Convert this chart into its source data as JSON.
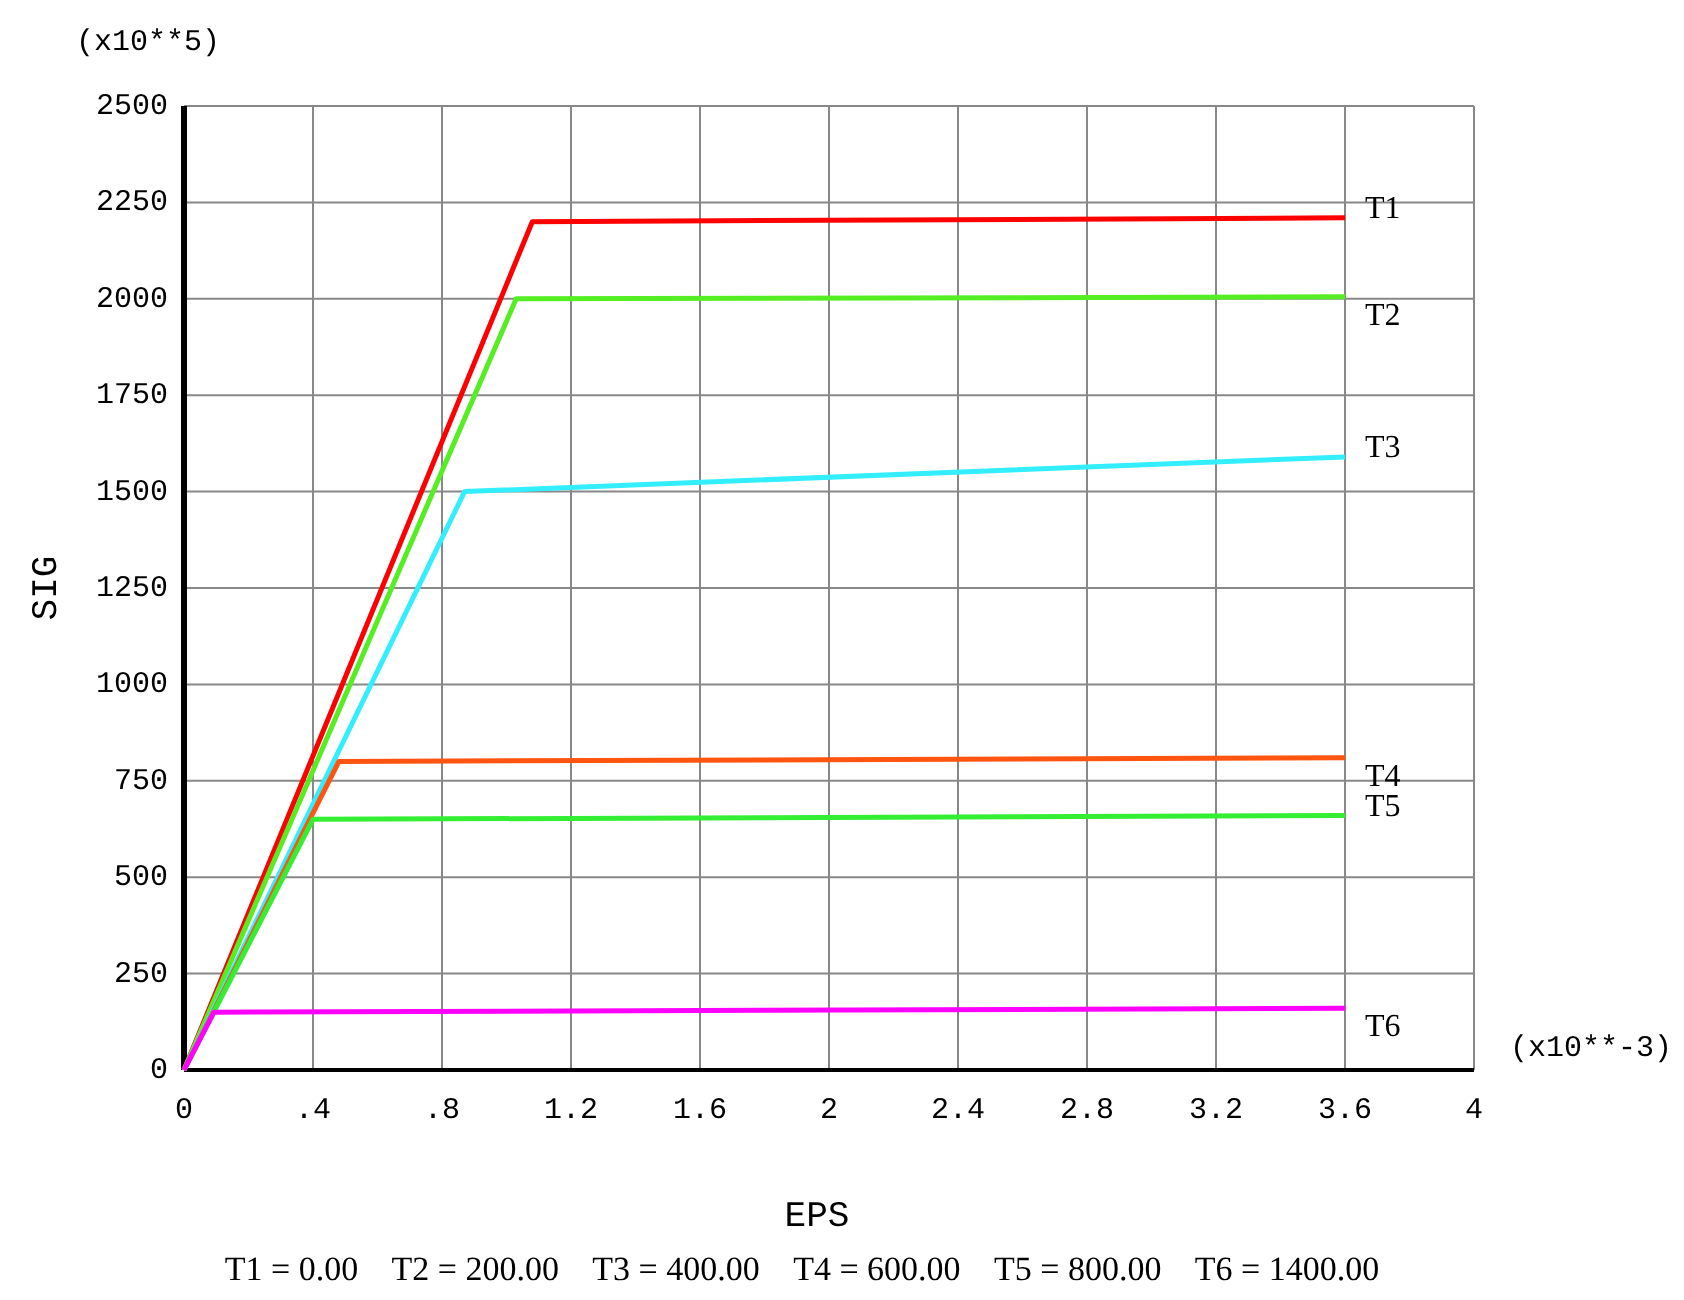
{
  "chart_data": {
    "type": "line",
    "xlabel": "EPS",
    "ylabel": "SIG",
    "xlim": [
      0,
      4
    ],
    "ylim": [
      0,
      2500
    ],
    "xticks": [
      0,
      {
        "value": 0.4,
        "label": ".4"
      },
      {
        "value": 0.8,
        "label": ".8"
      },
      1.2,
      1.6,
      2,
      2.4,
      2.8,
      3.2,
      3.6,
      4
    ],
    "yticks": [
      0,
      250,
      500,
      750,
      1000,
      1250,
      1500,
      1750,
      2000,
      2250,
      2500
    ],
    "grid": true,
    "marker": "none",
    "line_style": "solid",
    "series": [
      {
        "name": "T1",
        "color": "#ff0000",
        "x": [
          0,
          1.08,
          3.6
        ],
        "values": [
          0,
          2200,
          2210
        ]
      },
      {
        "name": "T2",
        "color": "#55ee22",
        "x": [
          0,
          1.03,
          3.6
        ],
        "values": [
          0,
          2000,
          2005
        ]
      },
      {
        "name": "T3",
        "color": "#33eeff",
        "x": [
          0,
          0.87,
          3.6
        ],
        "values": [
          0,
          1500,
          1590
        ]
      },
      {
        "name": "T4",
        "color": "#ff5511",
        "x": [
          0,
          0.48,
          3.6
        ],
        "values": [
          0,
          800,
          810
        ]
      },
      {
        "name": "T5",
        "color": "#33ee33",
        "x": [
          0,
          0.4,
          3.6
        ],
        "values": [
          0,
          650,
          660
        ]
      },
      {
        "name": "T6",
        "color": "#ff00ff",
        "x": [
          0,
          0.093,
          3.6
        ],
        "values": [
          0,
          150,
          160
        ]
      }
    ],
    "annotations": [
      "(x10**5)",
      "(x10**-3)",
      "T1 = 0.00    T2 = 200.00    T3 = 400.00    T4 = 600.00    T5 = 800.00    T6 = 1400.00"
    ]
  }
}
